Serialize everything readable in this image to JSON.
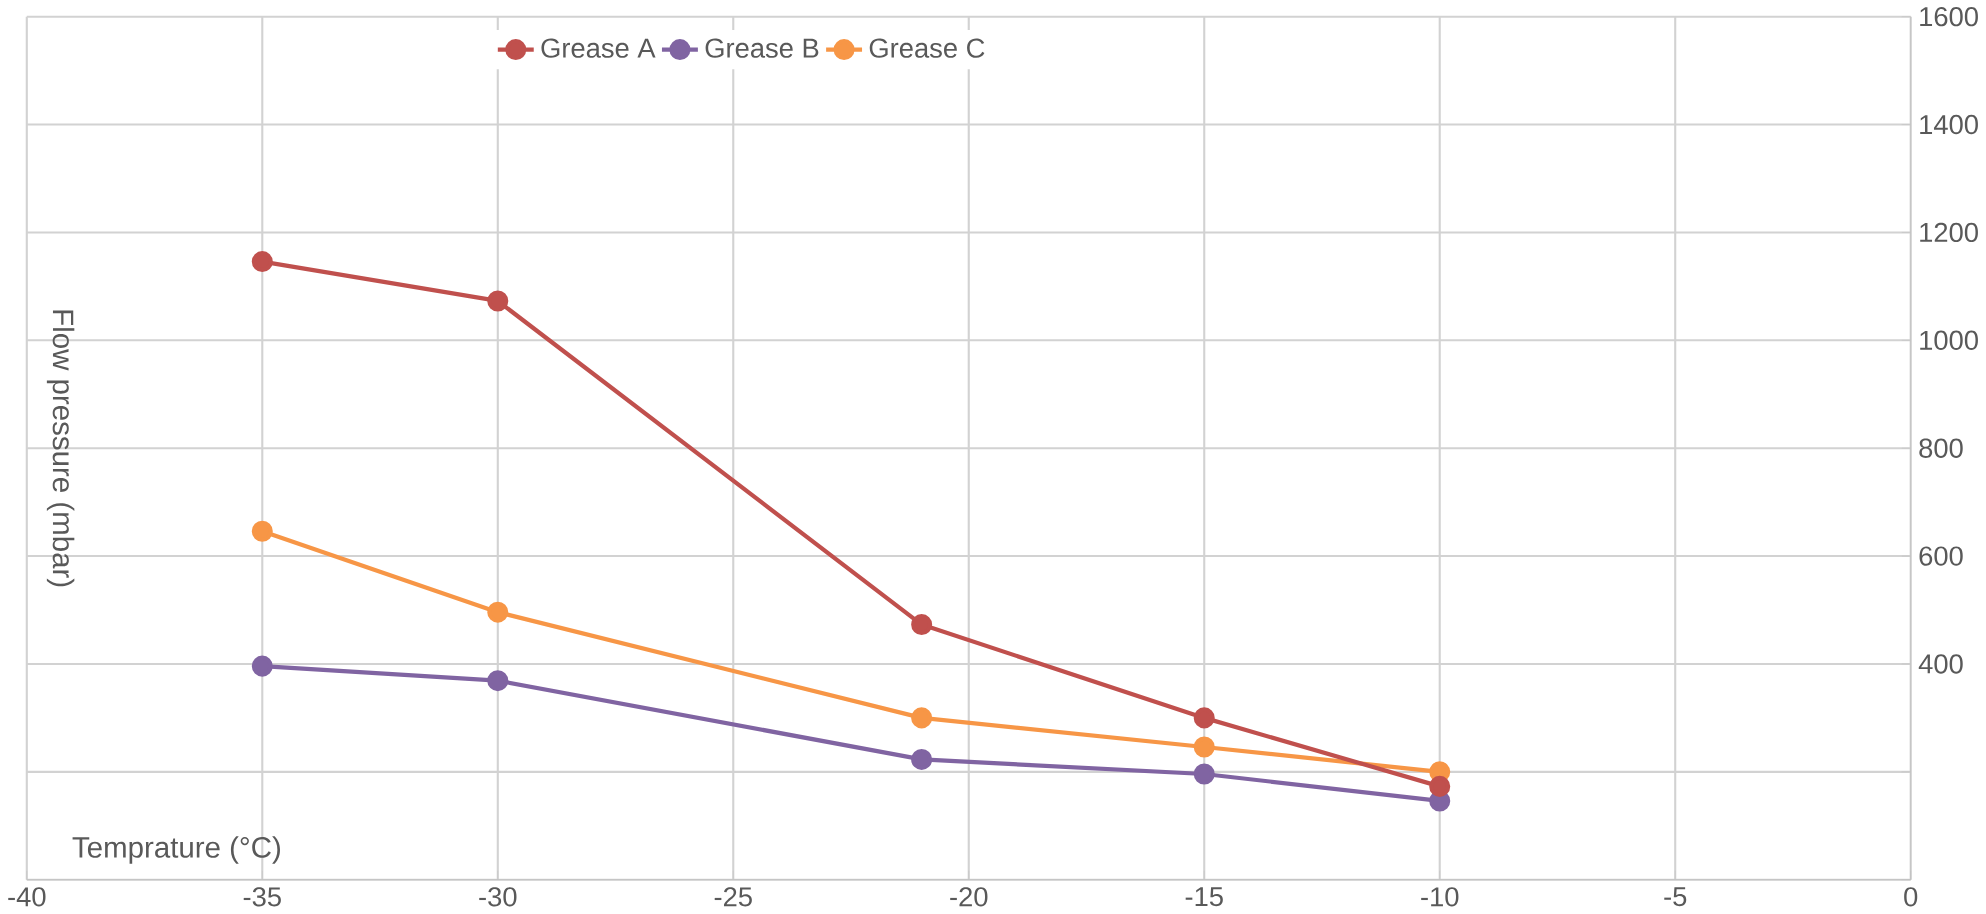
{
  "chart_data": {
    "type": "line",
    "xlabel": "Temprature  (°C)",
    "ylabel": "Flow pressure (mbar)",
    "x": [
      -35,
      -30,
      -21,
      -15,
      -10
    ],
    "series": [
      {
        "name": "Grease A",
        "color": "#c0504d",
        "values": [
          1146,
          1073,
          473,
          300,
          173
        ]
      },
      {
        "name": "Grease B",
        "color": "#8064a2",
        "values": [
          396,
          369,
          223,
          196,
          146
        ]
      },
      {
        "name": "Grease C",
        "color": "#f79646",
        "values": [
          646,
          496,
          300,
          246,
          200
        ]
      }
    ],
    "xlim": [
      -40,
      0
    ],
    "xticks": [
      -40,
      -35,
      -30,
      -25,
      -20,
      -15,
      -10,
      -5,
      0
    ],
    "ylim": [
      0,
      1600
    ],
    "yticks": [
      {
        "value": 0,
        "label": null
      },
      {
        "value": 200,
        "label": null
      },
      400,
      600,
      800,
      1000,
      1200,
      1400,
      1600
    ],
    "grid": true,
    "legend": "top",
    "marker": "circle",
    "line_style": "solid"
  }
}
